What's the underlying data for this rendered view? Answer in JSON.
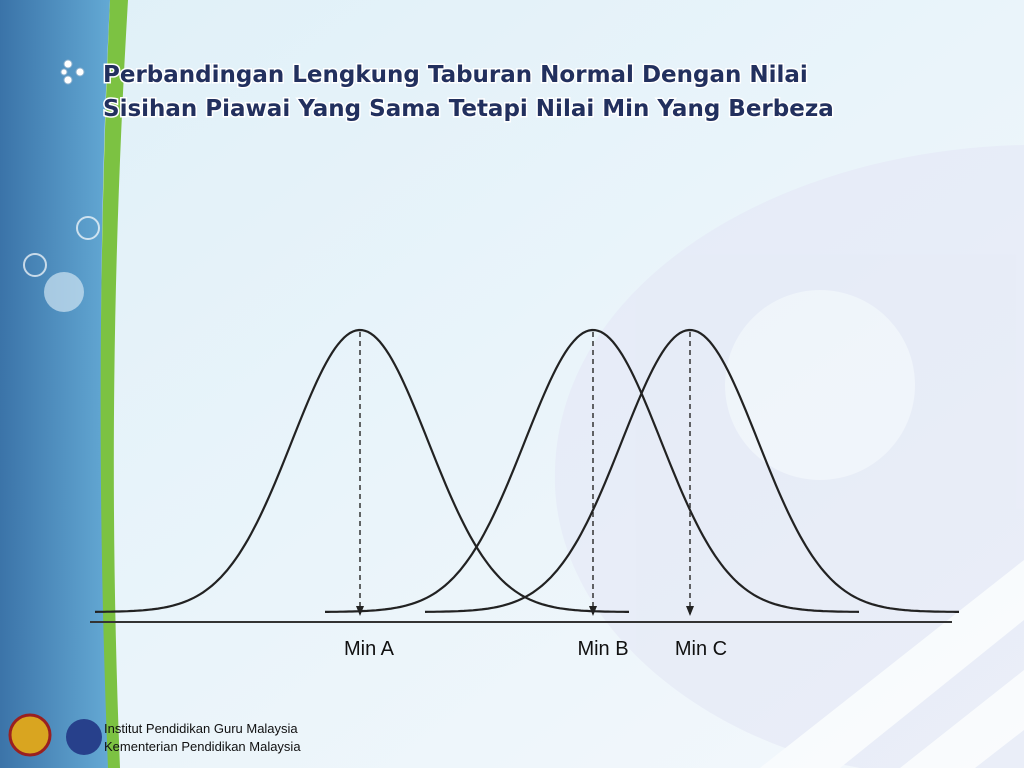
{
  "slide": {
    "title": [
      "Perbandingan Lengkung Taburan Normal Dengan Nilai",
      "Sisihan Piawai Yang Sama Tetapi Nilai Min Yang Berbeza"
    ]
  },
  "diagram": {
    "labels": [
      "Min A",
      "Min B",
      "Min C"
    ]
  },
  "footer": {
    "lines": [
      "Institut Pendidikan Guru Malaysia",
      "Kementerian Pendidikan Malaysia"
    ]
  }
}
